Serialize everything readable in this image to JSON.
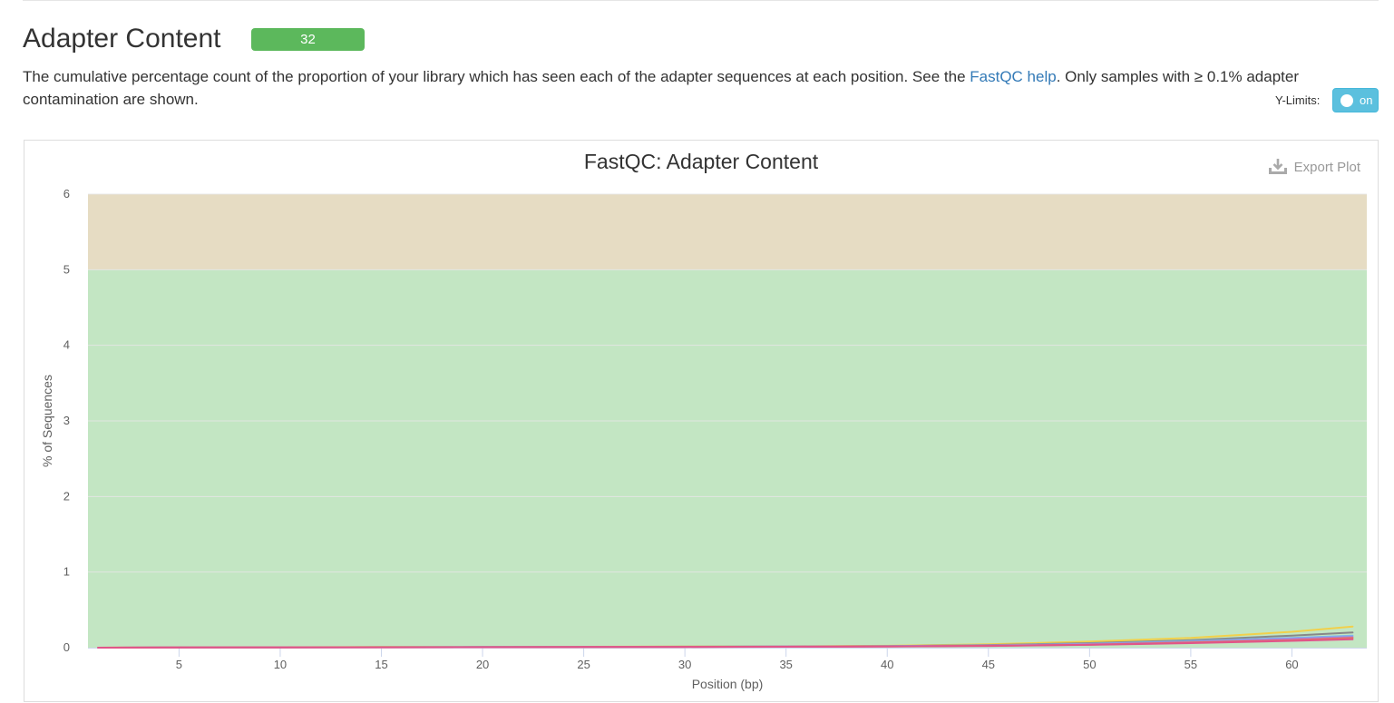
{
  "section": {
    "title": "Adapter Content",
    "badge": "32",
    "badge_color": "#5cb85c",
    "description_before_link": "The cumulative percentage count of the proportion of your library which has seen each of the adapter sequences at each position. See the ",
    "link_text": "FastQC help",
    "link_color": "#337ab7",
    "description_after_link": ". Only samples with ≥ 0.1% adapter contamination are shown."
  },
  "controls": {
    "ylimits_label": "Y-Limits:",
    "toggle_label": "on",
    "toggle_color": "#5bc0de"
  },
  "plot": {
    "export_label": "Export Plot",
    "export_icon": "download-icon"
  },
  "chart_data": {
    "type": "line",
    "title": "FastQC: Adapter Content",
    "xlabel": "Position (bp)",
    "ylabel": "% of Sequences",
    "xlim": [
      0.5,
      63.7
    ],
    "ylim": [
      0,
      6
    ],
    "xticks": [
      5,
      10,
      15,
      20,
      25,
      30,
      35,
      40,
      45,
      50,
      55,
      60
    ],
    "yticks": [
      0,
      1,
      2,
      3,
      4,
      5,
      6
    ],
    "grid": true,
    "legend": "none",
    "bands": [
      {
        "from": 0,
        "to": 5,
        "color": "#c3e6c3"
      },
      {
        "from": 5,
        "to": 6,
        "color": "#e6dcc3"
      }
    ],
    "x": [
      1,
      5,
      10,
      15,
      20,
      25,
      30,
      35,
      40,
      45,
      50,
      55,
      60,
      63
    ],
    "series": [
      {
        "color": "#f1d04b",
        "values": [
          0,
          0.004,
          0.006,
          0.008,
          0.01,
          0.012,
          0.015,
          0.018,
          0.025,
          0.045,
          0.08,
          0.13,
          0.21,
          0.28
        ]
      },
      {
        "color": "#888888",
        "values": [
          0,
          0.003,
          0.005,
          0.007,
          0.009,
          0.011,
          0.013,
          0.016,
          0.022,
          0.035,
          0.06,
          0.1,
          0.16,
          0.2
        ]
      },
      {
        "color": "#7cb5ec",
        "values": [
          0,
          0.003,
          0.005,
          0.006,
          0.008,
          0.01,
          0.012,
          0.015,
          0.02,
          0.03,
          0.05,
          0.085,
          0.13,
          0.16
        ]
      },
      {
        "color": "#b07cd8",
        "values": [
          0,
          0.003,
          0.004,
          0.006,
          0.007,
          0.009,
          0.011,
          0.014,
          0.018,
          0.027,
          0.045,
          0.075,
          0.115,
          0.14
        ]
      },
      {
        "color": "#e5735f",
        "values": [
          0,
          0.003,
          0.004,
          0.005,
          0.007,
          0.009,
          0.011,
          0.013,
          0.017,
          0.025,
          0.04,
          0.068,
          0.1,
          0.13
        ]
      },
      {
        "color": "#e0558a",
        "values": [
          0,
          0.004,
          0.005,
          0.005,
          0.006,
          0.008,
          0.01,
          0.012,
          0.016,
          0.023,
          0.037,
          0.06,
          0.09,
          0.11
        ]
      }
    ]
  }
}
